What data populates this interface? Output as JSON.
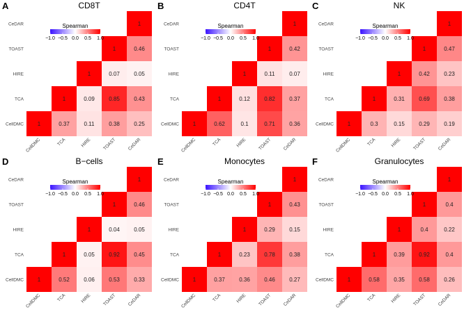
{
  "chart_data": [
    {
      "type": "heatmap",
      "panel_label": "A",
      "title": "CD8T",
      "legend_title": "Spearman",
      "legend_ticks": [
        "−1.0",
        "−0.5",
        "0.0",
        "0.5",
        "1.0"
      ],
      "legend_tick_values": [
        -1.0,
        -0.5,
        0.0,
        0.5,
        1.0
      ],
      "vmin": -1,
      "vmax": 1,
      "row_labels": [
        "CeDAR",
        "TOAST",
        "HIRE",
        "TCA",
        "CellDMC"
      ],
      "col_labels": [
        "CellDMC",
        "TCA",
        "HIRE",
        "TOAST",
        "CeDAR"
      ],
      "cells": [
        {
          "row": "CellDMC",
          "col": "CellDMC",
          "value": 1,
          "label": "1"
        },
        {
          "row": "CellDMC",
          "col": "TCA",
          "value": 0.37,
          "label": "0.37"
        },
        {
          "row": "CellDMC",
          "col": "HIRE",
          "value": 0.11,
          "label": "0.11"
        },
        {
          "row": "CellDMC",
          "col": "TOAST",
          "value": 0.38,
          "label": "0.38"
        },
        {
          "row": "CellDMC",
          "col": "CeDAR",
          "value": 0.25,
          "label": "0.25"
        },
        {
          "row": "TCA",
          "col": "TCA",
          "value": 1,
          "label": "1"
        },
        {
          "row": "TCA",
          "col": "HIRE",
          "value": 0.09,
          "label": "0.09"
        },
        {
          "row": "TCA",
          "col": "TOAST",
          "value": 0.85,
          "label": "0.85"
        },
        {
          "row": "TCA",
          "col": "CeDAR",
          "value": 0.43,
          "label": "0.43"
        },
        {
          "row": "HIRE",
          "col": "HIRE",
          "value": 1,
          "label": "1"
        },
        {
          "row": "HIRE",
          "col": "TOAST",
          "value": 0.07,
          "label": "0.07"
        },
        {
          "row": "HIRE",
          "col": "CeDAR",
          "value": 0.05,
          "label": "0.05"
        },
        {
          "row": "TOAST",
          "col": "TOAST",
          "value": 1,
          "label": "1"
        },
        {
          "row": "TOAST",
          "col": "CeDAR",
          "value": 0.46,
          "label": "0.46"
        },
        {
          "row": "CeDAR",
          "col": "CeDAR",
          "value": 1,
          "label": "1"
        }
      ]
    },
    {
      "type": "heatmap",
      "panel_label": "B",
      "title": "CD4T",
      "legend_title": "Spearman",
      "legend_ticks": [
        "−1.0",
        "−0.5",
        "0.0",
        "0.5",
        "1.0"
      ],
      "legend_tick_values": [
        -1.0,
        -0.5,
        0.0,
        0.5,
        1.0
      ],
      "vmin": -1,
      "vmax": 1,
      "row_labels": [
        "CeDAR",
        "TOAST",
        "HIRE",
        "TCA",
        "CellDMC"
      ],
      "col_labels": [
        "CellDMC",
        "TCA",
        "HIRE",
        "TOAST",
        "CeDAR"
      ],
      "cells": [
        {
          "row": "CellDMC",
          "col": "CellDMC",
          "value": 1,
          "label": "1"
        },
        {
          "row": "CellDMC",
          "col": "TCA",
          "value": 0.62,
          "label": "0.62"
        },
        {
          "row": "CellDMC",
          "col": "HIRE",
          "value": 0.1,
          "label": "0.1"
        },
        {
          "row": "CellDMC",
          "col": "TOAST",
          "value": 0.71,
          "label": "0.71"
        },
        {
          "row": "CellDMC",
          "col": "CeDAR",
          "value": 0.36,
          "label": "0.36"
        },
        {
          "row": "TCA",
          "col": "TCA",
          "value": 1,
          "label": "1"
        },
        {
          "row": "TCA",
          "col": "HIRE",
          "value": 0.12,
          "label": "0.12"
        },
        {
          "row": "TCA",
          "col": "TOAST",
          "value": 0.82,
          "label": "0.82"
        },
        {
          "row": "TCA",
          "col": "CeDAR",
          "value": 0.37,
          "label": "0.37"
        },
        {
          "row": "HIRE",
          "col": "HIRE",
          "value": 1,
          "label": "1"
        },
        {
          "row": "HIRE",
          "col": "TOAST",
          "value": 0.11,
          "label": "0.11"
        },
        {
          "row": "HIRE",
          "col": "CeDAR",
          "value": 0.07,
          "label": "0.07"
        },
        {
          "row": "TOAST",
          "col": "TOAST",
          "value": 1,
          "label": "1"
        },
        {
          "row": "TOAST",
          "col": "CeDAR",
          "value": 0.42,
          "label": "0.42"
        },
        {
          "row": "CeDAR",
          "col": "CeDAR",
          "value": 1,
          "label": "1"
        }
      ]
    },
    {
      "type": "heatmap",
      "panel_label": "C",
      "title": "NK",
      "legend_title": "Spearman",
      "legend_ticks": [
        "−1.0",
        "−0.5",
        "0.0",
        "0.5",
        "1.0"
      ],
      "legend_tick_values": [
        -1.0,
        -0.5,
        0.0,
        0.5,
        1.0
      ],
      "vmin": -1,
      "vmax": 1,
      "row_labels": [
        "CeDAR",
        "TOAST",
        "HIRE",
        "TCA",
        "CellDMC"
      ],
      "col_labels": [
        "CellDMC",
        "TCA",
        "HIRE",
        "TOAST",
        "CeDAR"
      ],
      "cells": [
        {
          "row": "CellDMC",
          "col": "CellDMC",
          "value": 1,
          "label": "1"
        },
        {
          "row": "CellDMC",
          "col": "TCA",
          "value": 0.3,
          "label": "0.3"
        },
        {
          "row": "CellDMC",
          "col": "HIRE",
          "value": 0.15,
          "label": "0.15"
        },
        {
          "row": "CellDMC",
          "col": "TOAST",
          "value": 0.29,
          "label": "0.29"
        },
        {
          "row": "CellDMC",
          "col": "CeDAR",
          "value": 0.19,
          "label": "0.19"
        },
        {
          "row": "TCA",
          "col": "TCA",
          "value": 1,
          "label": "1"
        },
        {
          "row": "TCA",
          "col": "HIRE",
          "value": 0.31,
          "label": "0.31"
        },
        {
          "row": "TCA",
          "col": "TOAST",
          "value": 0.69,
          "label": "0.69"
        },
        {
          "row": "TCA",
          "col": "CeDAR",
          "value": 0.38,
          "label": "0.38"
        },
        {
          "row": "HIRE",
          "col": "HIRE",
          "value": 1,
          "label": "1"
        },
        {
          "row": "HIRE",
          "col": "TOAST",
          "value": 0.42,
          "label": "0.42"
        },
        {
          "row": "HIRE",
          "col": "CeDAR",
          "value": 0.23,
          "label": "0.23"
        },
        {
          "row": "TOAST",
          "col": "TOAST",
          "value": 1,
          "label": "1"
        },
        {
          "row": "TOAST",
          "col": "CeDAR",
          "value": 0.47,
          "label": "0.47"
        },
        {
          "row": "CeDAR",
          "col": "CeDAR",
          "value": 1,
          "label": "1"
        }
      ]
    },
    {
      "type": "heatmap",
      "panel_label": "D",
      "title": "B−cells",
      "legend_title": "Spearman",
      "legend_ticks": [
        "−1.0",
        "−0.5",
        "0.0",
        "0.5",
        "1.0"
      ],
      "legend_tick_values": [
        -1.0,
        -0.5,
        0.0,
        0.5,
        1.0
      ],
      "vmin": -1,
      "vmax": 1,
      "row_labels": [
        "CeDAR",
        "TOAST",
        "HIRE",
        "TCA",
        "CellDMC"
      ],
      "col_labels": [
        "CellDMC",
        "TCA",
        "HIRE",
        "TOAST",
        "CeDAR"
      ],
      "cells": [
        {
          "row": "CellDMC",
          "col": "CellDMC",
          "value": 1,
          "label": "1"
        },
        {
          "row": "CellDMC",
          "col": "TCA",
          "value": 0.52,
          "label": "0.52"
        },
        {
          "row": "CellDMC",
          "col": "HIRE",
          "value": 0.06,
          "label": "0.06"
        },
        {
          "row": "CellDMC",
          "col": "TOAST",
          "value": 0.53,
          "label": "0.53"
        },
        {
          "row": "CellDMC",
          "col": "CeDAR",
          "value": 0.33,
          "label": "0.33"
        },
        {
          "row": "TCA",
          "col": "TCA",
          "value": 1,
          "label": "1"
        },
        {
          "row": "TCA",
          "col": "HIRE",
          "value": 0.05,
          "label": "0.05"
        },
        {
          "row": "TCA",
          "col": "TOAST",
          "value": 0.92,
          "label": "0.92"
        },
        {
          "row": "TCA",
          "col": "CeDAR",
          "value": 0.45,
          "label": "0.45"
        },
        {
          "row": "HIRE",
          "col": "HIRE",
          "value": 1,
          "label": "1"
        },
        {
          "row": "HIRE",
          "col": "TOAST",
          "value": 0.04,
          "label": "0.04"
        },
        {
          "row": "HIRE",
          "col": "CeDAR",
          "value": 0.05,
          "label": "0.05"
        },
        {
          "row": "TOAST",
          "col": "TOAST",
          "value": 1,
          "label": "1"
        },
        {
          "row": "TOAST",
          "col": "CeDAR",
          "value": 0.46,
          "label": "0.46"
        },
        {
          "row": "CeDAR",
          "col": "CeDAR",
          "value": 1,
          "label": "1"
        }
      ]
    },
    {
      "type": "heatmap",
      "panel_label": "E",
      "title": "Monocytes",
      "legend_title": "Spearman",
      "legend_ticks": [
        "−1.0",
        "−0.5",
        "0.0",
        "0.5",
        "1.0"
      ],
      "legend_tick_values": [
        -1.0,
        -0.5,
        0.0,
        0.5,
        1.0
      ],
      "vmin": -1,
      "vmax": 1,
      "row_labels": [
        "CeDAR",
        "TOAST",
        "HIRE",
        "TCA",
        "CellDMC"
      ],
      "col_labels": [
        "CellDMC",
        "TCA",
        "HIRE",
        "TOAST",
        "CeDAR"
      ],
      "cells": [
        {
          "row": "CellDMC",
          "col": "CellDMC",
          "value": 1,
          "label": "1"
        },
        {
          "row": "CellDMC",
          "col": "TCA",
          "value": 0.37,
          "label": "0.37"
        },
        {
          "row": "CellDMC",
          "col": "HIRE",
          "value": 0.36,
          "label": "0.36"
        },
        {
          "row": "CellDMC",
          "col": "TOAST",
          "value": 0.46,
          "label": "0.46"
        },
        {
          "row": "CellDMC",
          "col": "CeDAR",
          "value": 0.27,
          "label": "0.27"
        },
        {
          "row": "TCA",
          "col": "TCA",
          "value": 1,
          "label": "1"
        },
        {
          "row": "TCA",
          "col": "HIRE",
          "value": 0.23,
          "label": "0.23"
        },
        {
          "row": "TCA",
          "col": "TOAST",
          "value": 0.78,
          "label": "0.78"
        },
        {
          "row": "TCA",
          "col": "CeDAR",
          "value": 0.38,
          "label": "0.38"
        },
        {
          "row": "HIRE",
          "col": "HIRE",
          "value": 1,
          "label": "1"
        },
        {
          "row": "HIRE",
          "col": "TOAST",
          "value": 0.29,
          "label": "0.29"
        },
        {
          "row": "HIRE",
          "col": "CeDAR",
          "value": 0.15,
          "label": "0.15"
        },
        {
          "row": "TOAST",
          "col": "TOAST",
          "value": 1,
          "label": "1"
        },
        {
          "row": "TOAST",
          "col": "CeDAR",
          "value": 0.43,
          "label": "0.43"
        },
        {
          "row": "CeDAR",
          "col": "CeDAR",
          "value": 1,
          "label": "1"
        }
      ]
    },
    {
      "type": "heatmap",
      "panel_label": "F",
      "title": "Granulocytes",
      "legend_title": "Spearman",
      "legend_ticks": [
        "−1.0",
        "−0.5",
        "0.0",
        "0.5",
        "1.0"
      ],
      "legend_tick_values": [
        -1.0,
        -0.5,
        0.0,
        0.5,
        1.0
      ],
      "vmin": -1,
      "vmax": 1,
      "row_labels": [
        "CeDAR",
        "TOAST",
        "HIRE",
        "TCA",
        "CellDMC"
      ],
      "col_labels": [
        "CellDMC",
        "TCA",
        "HIRE",
        "TOAST",
        "CeDAR"
      ],
      "cells": [
        {
          "row": "CellDMC",
          "col": "CellDMC",
          "value": 1,
          "label": "1"
        },
        {
          "row": "CellDMC",
          "col": "TCA",
          "value": 0.58,
          "label": "0.58"
        },
        {
          "row": "CellDMC",
          "col": "HIRE",
          "value": 0.35,
          "label": "0.35"
        },
        {
          "row": "CellDMC",
          "col": "TOAST",
          "value": 0.58,
          "label": "0.58"
        },
        {
          "row": "CellDMC",
          "col": "CeDAR",
          "value": 0.26,
          "label": "0.26"
        },
        {
          "row": "TCA",
          "col": "TCA",
          "value": 1,
          "label": "1"
        },
        {
          "row": "TCA",
          "col": "HIRE",
          "value": 0.39,
          "label": "0.39"
        },
        {
          "row": "TCA",
          "col": "TOAST",
          "value": 0.92,
          "label": "0.92"
        },
        {
          "row": "TCA",
          "col": "CeDAR",
          "value": 0.4,
          "label": "0.4"
        },
        {
          "row": "HIRE",
          "col": "HIRE",
          "value": 1,
          "label": "1"
        },
        {
          "row": "HIRE",
          "col": "TOAST",
          "value": 0.4,
          "label": "0.4"
        },
        {
          "row": "HIRE",
          "col": "CeDAR",
          "value": 0.22,
          "label": "0.22"
        },
        {
          "row": "TOAST",
          "col": "TOAST",
          "value": 1,
          "label": "1"
        },
        {
          "row": "TOAST",
          "col": "CeDAR",
          "value": 0.4,
          "label": "0.4"
        },
        {
          "row": "CeDAR",
          "col": "CeDAR",
          "value": 1,
          "label": "1"
        }
      ]
    }
  ],
  "colors": {
    "low": "#3b14ff",
    "mid": "#ffffff",
    "high": "#ff0000"
  }
}
